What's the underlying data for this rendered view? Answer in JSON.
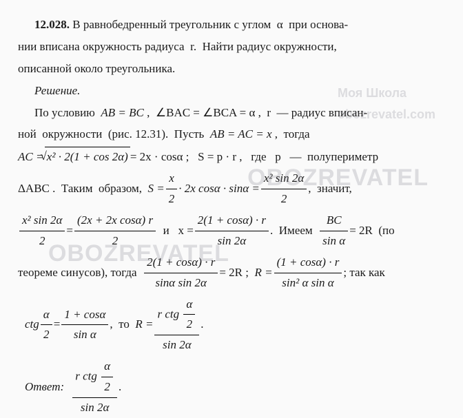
{
  "problem": {
    "number": "12.028.",
    "statement_l1": "В равнобедренный треугольник с углом  α  при основа-",
    "statement_l2": "нии вписана окружность радиуса  r.  Найти радиус окружности,",
    "statement_l3": "описанной около треугольника."
  },
  "labels": {
    "solution": "Решение.",
    "answer": "Ответ:"
  },
  "sol": {
    "l1a": "По условию  ",
    "e1": "AB = BC",
    "l1b": " ,  ∠BAC = ∠BCA = α ,  r  — радиус вписан-",
    "l2a": "ной  окружности  (рис. 12.31).  Пусть  ",
    "e2": "AB = AC = x",
    "l2b": " ,  тогда",
    "e3r": "x² · 2(1 + cos 2α)",
    "e3b": " = 2x · cosα ;   S = p · r ,   где   p   —  полупериметр",
    "l4a": "ΔABC .  Таким  образом,  ",
    "e4n": "x",
    "e4d": "2",
    "e4mid": " · 2x cosα · sinα = ",
    "e5n": "x² sin 2α",
    "e5d": "2",
    "l4b": " ,  значит,",
    "e6n": "x² sin 2α",
    "e6d": "2",
    "eq": " = ",
    "e7n": "(2x + 2x cosα) r",
    "e7d": "2",
    "and": "   и   x = ",
    "e8n": "2(1 + cosα) · r",
    "e8d": "sin 2α",
    "have": " .  Имеем  ",
    "e9n": "BC",
    "e9d": "sin α",
    "e9r": " = 2R  (по",
    "l6a": "теореме синусов), тогда  ",
    "e10n": "2(1 + cosα) · r",
    "e10d": "sinα sin 2α",
    "e10r": " = 2R ;  ",
    "rlab": "R = ",
    "e11n": "(1 + cosα) · r",
    "e11d": "sin² α sin α",
    "l6b": " ; так как",
    "e12l": "ctg ",
    "e12n": "α",
    "e12d": "2",
    "e12m": " = ",
    "e13n": "1 + cosα",
    "e13d": "sin α",
    "then": " ,  то  ",
    "e14nL": "r ctg ",
    "e14d": "sin 2α",
    "dot": " ."
  }
}
